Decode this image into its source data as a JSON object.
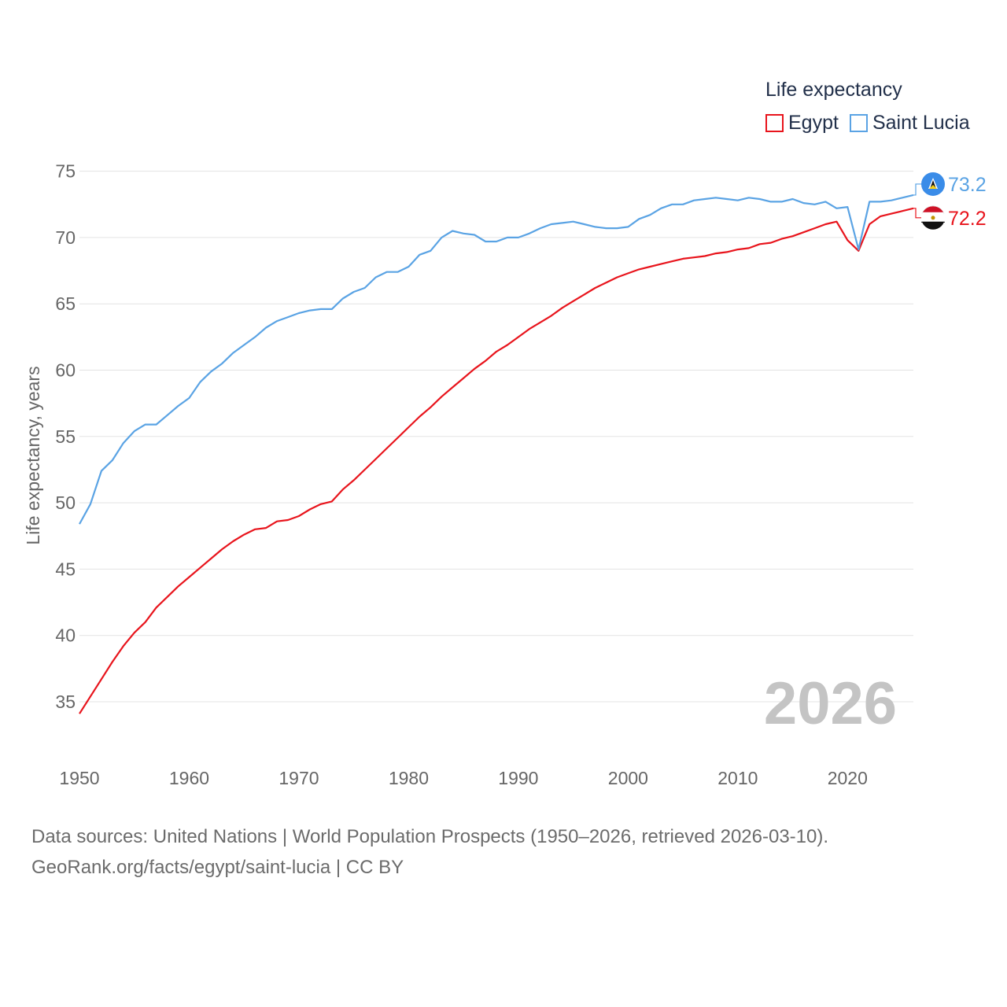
{
  "legend": {
    "title": "Life expectancy",
    "items": [
      {
        "name": "Egypt",
        "color": "#e8141c"
      },
      {
        "name": "Saint Lucia",
        "color": "#5aa3e4"
      }
    ]
  },
  "footer": {
    "line1": "Data sources: United Nations | World Population Prospects (1950–2026, retrieved 2026-03-10).",
    "line2": "GeoRank.org/facts/egypt/saint-lucia | CC BY"
  },
  "chart_data": {
    "type": "line",
    "title": "Life expectancy",
    "ylabel": "Life expectancy, years",
    "xlabel": "",
    "year_label": "2026",
    "xlim": [
      1950,
      2026
    ],
    "ylim": [
      32,
      76
    ],
    "x_ticks": [
      1950,
      1960,
      1970,
      1980,
      1990,
      2000,
      2010,
      2020
    ],
    "y_ticks": [
      35,
      40,
      45,
      50,
      55,
      60,
      65,
      70,
      75
    ],
    "grid": true,
    "legend_position": "top-right",
    "x": [
      1950,
      1951,
      1952,
      1953,
      1954,
      1955,
      1956,
      1957,
      1958,
      1959,
      1960,
      1961,
      1962,
      1963,
      1964,
      1965,
      1966,
      1967,
      1968,
      1969,
      1970,
      1971,
      1972,
      1973,
      1974,
      1975,
      1976,
      1977,
      1978,
      1979,
      1980,
      1981,
      1982,
      1983,
      1984,
      1985,
      1986,
      1987,
      1988,
      1989,
      1990,
      1991,
      1992,
      1993,
      1994,
      1995,
      1996,
      1997,
      1998,
      1999,
      2000,
      2001,
      2002,
      2003,
      2004,
      2005,
      2006,
      2007,
      2008,
      2009,
      2010,
      2011,
      2012,
      2013,
      2014,
      2015,
      2016,
      2017,
      2018,
      2019,
      2020,
      2021,
      2022,
      2023,
      2024,
      2025,
      2026
    ],
    "series": [
      {
        "name": "Egypt",
        "color": "#e8141c",
        "flag": "egypt-flag",
        "end_value": "72.2",
        "values": [
          34.1,
          35.4,
          36.7,
          38.0,
          39.2,
          40.2,
          41.0,
          42.1,
          42.9,
          43.7,
          44.4,
          45.1,
          45.8,
          46.5,
          47.1,
          47.6,
          48.0,
          48.1,
          48.6,
          48.7,
          49.0,
          49.5,
          49.9,
          50.1,
          51.0,
          51.7,
          52.5,
          53.3,
          54.1,
          54.9,
          55.7,
          56.5,
          57.2,
          58.0,
          58.7,
          59.4,
          60.1,
          60.7,
          61.4,
          61.9,
          62.5,
          63.1,
          63.6,
          64.1,
          64.7,
          65.2,
          65.7,
          66.2,
          66.6,
          67.0,
          67.3,
          67.6,
          67.8,
          68.0,
          68.2,
          68.4,
          68.5,
          68.6,
          68.8,
          68.9,
          69.1,
          69.2,
          69.5,
          69.6,
          69.9,
          70.1,
          70.4,
          70.7,
          71.0,
          71.2,
          69.8,
          69.0,
          71.0,
          71.6,
          71.8,
          72.0,
          72.2
        ]
      },
      {
        "name": "Saint Lucia",
        "color": "#5aa3e4",
        "flag": "saint-lucia-flag",
        "end_value": "73.2",
        "values": [
          48.4,
          49.9,
          52.4,
          53.2,
          54.5,
          55.4,
          55.9,
          55.9,
          56.6,
          57.3,
          57.9,
          59.1,
          59.9,
          60.5,
          61.3,
          61.9,
          62.5,
          63.2,
          63.7,
          64.0,
          64.3,
          64.5,
          64.6,
          64.6,
          65.4,
          65.9,
          66.2,
          67.0,
          67.4,
          67.4,
          67.8,
          68.7,
          69.0,
          70.0,
          70.5,
          70.3,
          70.2,
          69.7,
          69.7,
          70.0,
          70.0,
          70.3,
          70.7,
          71.0,
          71.1,
          71.2,
          71.0,
          70.8,
          70.7,
          70.7,
          70.8,
          71.4,
          71.7,
          72.2,
          72.5,
          72.5,
          72.8,
          72.9,
          73.0,
          72.9,
          72.8,
          73.0,
          72.9,
          72.7,
          72.7,
          72.9,
          72.6,
          72.5,
          72.7,
          72.2,
          72.3,
          69.1,
          72.7,
          72.7,
          72.8,
          73.0,
          73.2
        ]
      }
    ]
  }
}
